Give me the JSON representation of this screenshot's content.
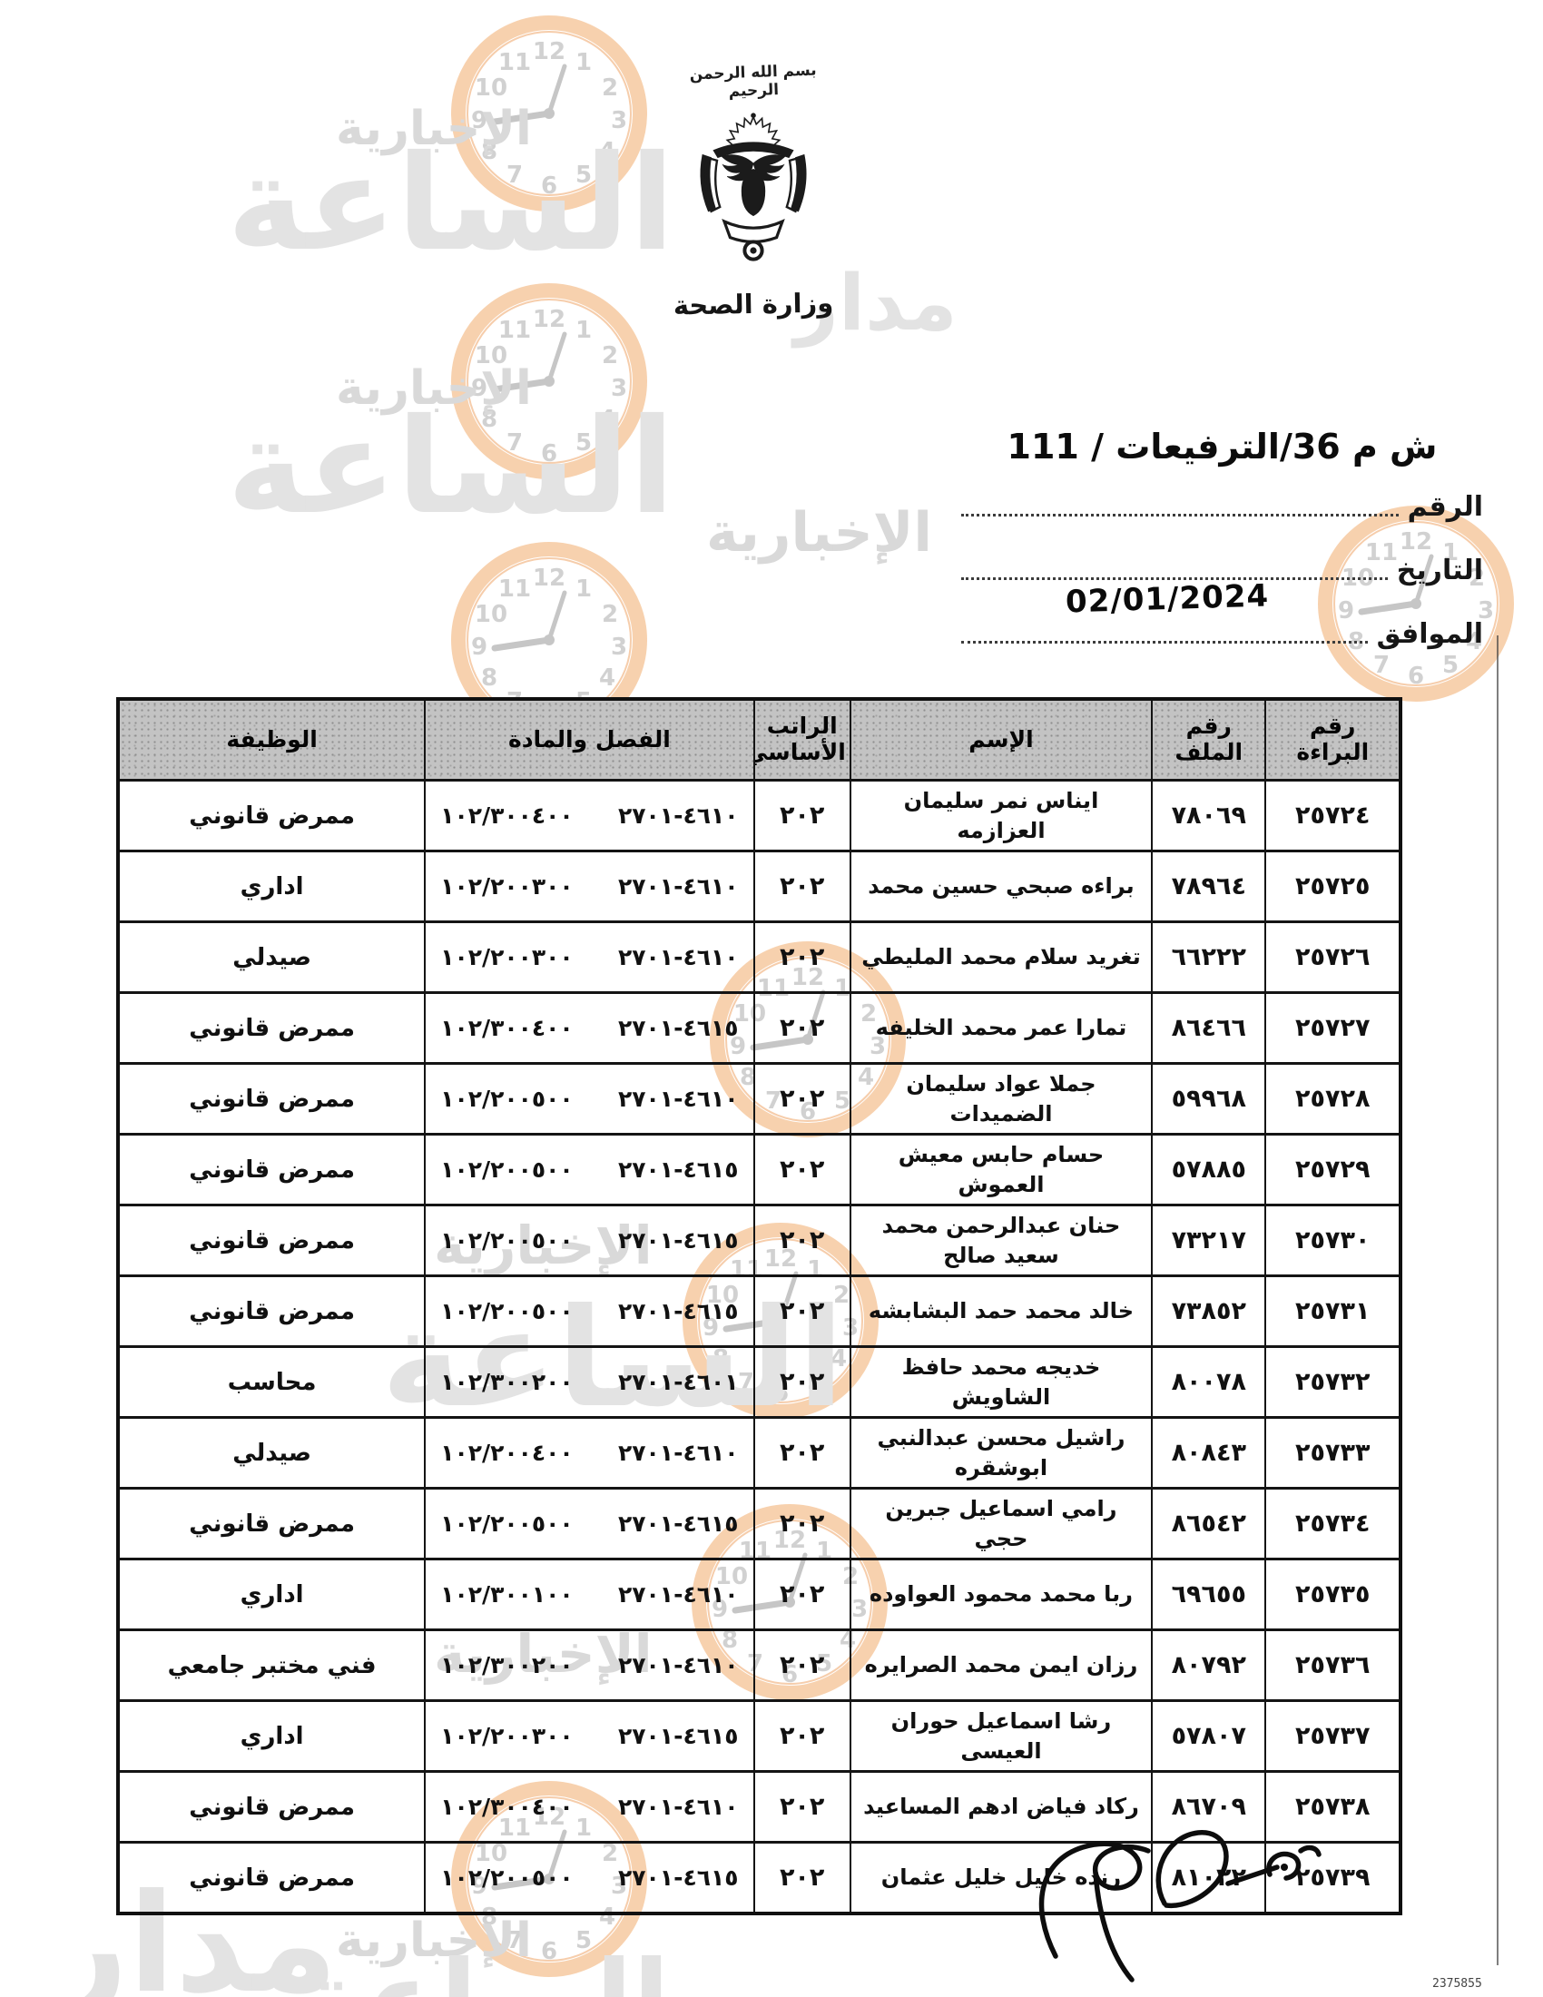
{
  "document": {
    "bismillah": "بسم الله الرحمن الرحيم",
    "ministry_name": "وزارة الصحة",
    "reference_line": "ش م 36/الترفيعات / 111",
    "number_label": "الرقم",
    "date_label": "التاريخ",
    "date_value": "02/01/2024",
    "agreed_label": "الموافق",
    "serial_footer": "2375855"
  },
  "watermark": {
    "brand_first": "مدار",
    "brand_second": "الساعة",
    "brand_sub": "الإخبارية",
    "clock_ring_color": "#f6c9a0",
    "text_color": "#e3e3e3"
  },
  "table": {
    "headers": {
      "decree_no": "رقم البراءة",
      "file_no": "رقم الملف",
      "name": "الإسم",
      "salary": "الراتب الأساسي",
      "chapter_article": "الفصل والمادة",
      "job": "الوظيفة"
    },
    "rows": [
      {
        "decree_no": "٢٥٧٢٤",
        "file_no": "٧٨٠٦٩",
        "name": "ايناس نمر سليمان العزازمه",
        "salary": "٢٠٢",
        "code_left": "١٠٢/٣٠٠٤٠٠",
        "code_right": "٤٦١٠-٢٧٠١",
        "job": "ممرض قانوني"
      },
      {
        "decree_no": "٢٥٧٢٥",
        "file_no": "٧٨٩٦٤",
        "name": "براءه صبحي حسين محمد",
        "salary": "٢٠٢",
        "code_left": "١٠٢/٢٠٠٣٠٠",
        "code_right": "٤٦١٠-٢٧٠١",
        "job": "اداري"
      },
      {
        "decree_no": "٢٥٧٢٦",
        "file_no": "٦٦٢٢٢",
        "name": "تغريد سلام محمد المليطي",
        "salary": "٢٠٢",
        "code_left": "١٠٢/٢٠٠٣٠٠",
        "code_right": "٤٦١٠-٢٧٠١",
        "job": "صيدلي"
      },
      {
        "decree_no": "٢٥٧٢٧",
        "file_no": "٨٦٤٦٦",
        "name": "تمارا عمر محمد الخليفه",
        "salary": "٢٠٢",
        "code_left": "١٠٢/٣٠٠٤٠٠",
        "code_right": "٤٦١٥-٢٧٠١",
        "job": "ممرض قانوني"
      },
      {
        "decree_no": "٢٥٧٢٨",
        "file_no": "٥٩٩٦٨",
        "name": "جملا عواد سليمان الضميدات",
        "salary": "٢٠٢",
        "code_left": "١٠٢/٢٠٠٥٠٠",
        "code_right": "٤٦١٠-٢٧٠١",
        "job": "ممرض قانوني"
      },
      {
        "decree_no": "٢٥٧٢٩",
        "file_no": "٥٧٨٨٥",
        "name": "حسام حابس معيش العموش",
        "salary": "٢٠٢",
        "code_left": "١٠٢/٢٠٠٥٠٠",
        "code_right": "٤٦١٥-٢٧٠١",
        "job": "ممرض قانوني"
      },
      {
        "decree_no": "٢٥٧٣٠",
        "file_no": "٧٣٢١٧",
        "name": "حنان عبدالرحمن محمد سعيد صالح",
        "salary": "٢٠٢",
        "code_left": "١٠٢/٢٠٠٥٠٠",
        "code_right": "٤٦١٥-٢٧٠١",
        "job": "ممرض قانوني"
      },
      {
        "decree_no": "٢٥٧٣١",
        "file_no": "٧٣٨٥٢",
        "name": "خالد محمد حمد البشابشه",
        "salary": "٢٠٢",
        "code_left": "١٠٢/٢٠٠٥٠٠",
        "code_right": "٤٦١٥-٢٧٠١",
        "job": "ممرض قانوني"
      },
      {
        "decree_no": "٢٥٧٣٢",
        "file_no": "٨٠٠٧٨",
        "name": "خديجه محمد حافظ الشاويش",
        "salary": "٢٠٢",
        "code_left": "١٠٢/٣٠٠٢٠٠",
        "code_right": "٤٦٠١-٢٧٠١",
        "job": "محاسب"
      },
      {
        "decree_no": "٢٥٧٣٣",
        "file_no": "٨٠٨٤٣",
        "name": "راشيل محسن عبدالنبي ابوشقره",
        "salary": "٢٠٢",
        "code_left": "١٠٢/٢٠٠٤٠٠",
        "code_right": "٤٦١٠-٢٧٠١",
        "job": "صيدلي"
      },
      {
        "decree_no": "٢٥٧٣٤",
        "file_no": "٨٦٥٤٢",
        "name": "رامي اسماعيل جبرين حجي",
        "salary": "٢٠٢",
        "code_left": "١٠٢/٢٠٠٥٠٠",
        "code_right": "٤٦١٥-٢٧٠١",
        "job": "ممرض قانوني"
      },
      {
        "decree_no": "٢٥٧٣٥",
        "file_no": "٦٩٦٥٥",
        "name": "ربا محمد محمود العواوده",
        "salary": "٢٠٢",
        "code_left": "١٠٢/٣٠٠١٠٠",
        "code_right": "٤٦١٠-٢٧٠١",
        "job": "اداري"
      },
      {
        "decree_no": "٢٥٧٣٦",
        "file_no": "٨٠٧٩٢",
        "name": "رزان ايمن محمد الصرايره",
        "salary": "٢٠٢",
        "code_left": "١٠٢/٣٠٠٢٠٠",
        "code_right": "٤٦١٠-٢٧٠١",
        "job": "فني مختبر جامعي"
      },
      {
        "decree_no": "٢٥٧٣٧",
        "file_no": "٥٧٨٠٧",
        "name": "رشا اسماعيل حوران العيسى",
        "salary": "٢٠٢",
        "code_left": "١٠٢/٢٠٠٣٠٠",
        "code_right": "٤٦١٥-٢٧٠١",
        "job": "اداري"
      },
      {
        "decree_no": "٢٥٧٣٨",
        "file_no": "٨٦٧٠٩",
        "name": "ركاد فياض ادهم المساعيد",
        "salary": "٢٠٢",
        "code_left": "١٠٢/٣٠٠٤٠٠",
        "code_right": "٤٦١٠-٢٧٠١",
        "job": "ممرض قانوني"
      },
      {
        "decree_no": "٢٥٧٣٩",
        "file_no": "٨١٠٢٢",
        "name": "رنده خليل خليل عثمان",
        "salary": "٢٠٢",
        "code_left": "١٠٢/٢٠٠٥٠٠",
        "code_right": "٤٦١٥-٢٧٠١",
        "job": "ممرض قانوني"
      }
    ]
  }
}
